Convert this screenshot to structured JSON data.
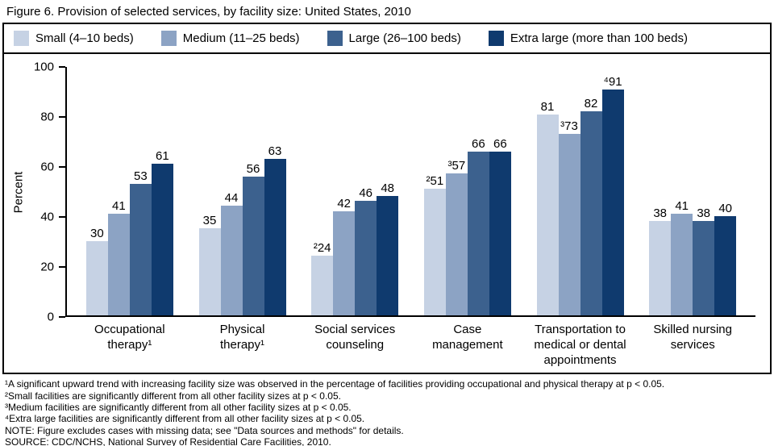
{
  "figure": {
    "title": "Figure 6. Provision of selected services, by facility size: United States, 2010",
    "footnotes": [
      "¹A significant upward trend with increasing facility size was observed in the percentage of facilities providing occupational and physical therapy at p < 0.05.",
      "²Small facilities are significantly different from all other facility sizes at p < 0.05.",
      "³Medium facilities are significantly different from all other facility sizes at p < 0.05.",
      "⁴Extra large facilities are significantly different from all other facility sizes at p < 0.05.",
      "NOTE: Figure excludes cases with missing data; see \"Data sources and methods\" for details.",
      "SOURCE: CDC/NCHS, National Survey of Residential Care Facilities, 2010."
    ]
  },
  "chart_data": {
    "type": "bar",
    "title": "Figure 6. Provision of selected services, by facility size: United States, 2010",
    "xlabel": "",
    "ylabel": "Percent",
    "ylim": [
      0,
      100
    ],
    "yticks": [
      0,
      20,
      40,
      60,
      80,
      100
    ],
    "grid": false,
    "legend_position": "top",
    "categories": [
      "Occupational\ntherapy¹",
      "Physical\ntherapy¹",
      "Social services\ncounseling",
      "Case\nmanagement",
      "Transportation to\nmedical or dental\nappointments",
      "Skilled nursing\nservices"
    ],
    "series": [
      {
        "name": "Small (4–10 beds)",
        "color": "#c6d2e4",
        "values": [
          30,
          35,
          24,
          51,
          81,
          38
        ],
        "labels": [
          "30",
          "35",
          "²24",
          "²51",
          "81",
          "38"
        ]
      },
      {
        "name": "Medium (11–25 beds)",
        "color": "#8ca3c4",
        "values": [
          41,
          44,
          42,
          57,
          73,
          41
        ],
        "labels": [
          "41",
          "44",
          "42",
          "³57",
          "³73",
          "41"
        ]
      },
      {
        "name": "Large (26–100 beds)",
        "color": "#3c618e",
        "values": [
          53,
          56,
          46,
          66,
          82,
          38
        ],
        "labels": [
          "53",
          "56",
          "46",
          "66",
          "82",
          "38"
        ]
      },
      {
        "name": "Extra large (more than 100 beds)",
        "color": "#0f3a6e",
        "values": [
          61,
          63,
          48,
          66,
          91,
          40
        ],
        "labels": [
          "61",
          "63",
          "48",
          "66",
          "⁴91",
          "40"
        ]
      }
    ]
  }
}
